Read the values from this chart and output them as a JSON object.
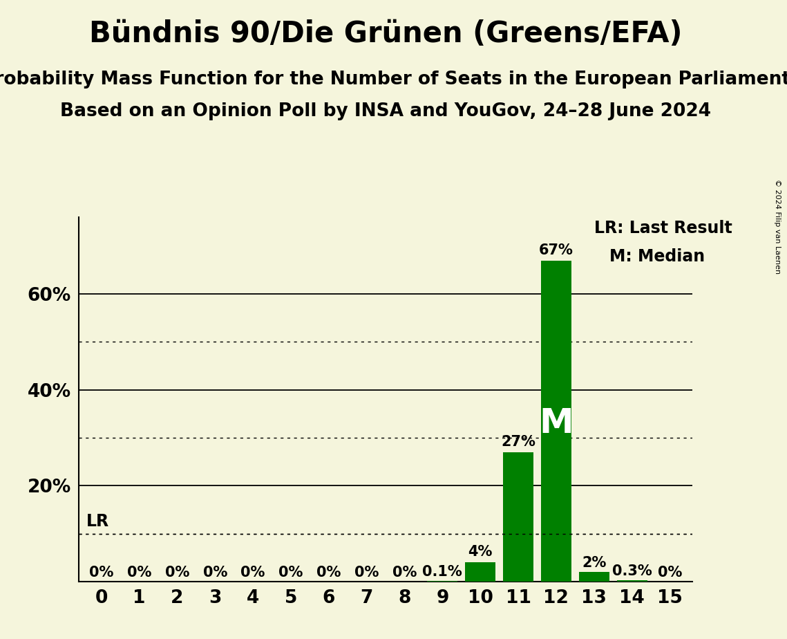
{
  "title": "Bündnis 90/Die Grünen (Greens/EFA)",
  "subtitle1": "Probability Mass Function for the Number of Seats in the European Parliament",
  "subtitle2": "Based on an Opinion Poll by INSA and YouGov, 24–28 June 2024",
  "copyright": "© 2024 Filip van Laenen",
  "categories": [
    0,
    1,
    2,
    3,
    4,
    5,
    6,
    7,
    8,
    9,
    10,
    11,
    12,
    13,
    14,
    15
  ],
  "values": [
    0.0,
    0.0,
    0.0,
    0.0,
    0.0,
    0.0,
    0.0,
    0.0,
    0.0,
    0.001,
    0.04,
    0.27,
    0.67,
    0.02,
    0.003,
    0.0
  ],
  "bar_labels": [
    "0%",
    "0%",
    "0%",
    "0%",
    "0%",
    "0%",
    "0%",
    "0%",
    "0%",
    "0.1%",
    "4%",
    "27%",
    "67%",
    "2%",
    "0.3%",
    "0%"
  ],
  "bar_color": "#008000",
  "background_color": "#F5F5DC",
  "lr_value": 0.1,
  "median_seat": 12,
  "ylim": [
    0,
    0.76
  ],
  "yticks": [
    0.2,
    0.4,
    0.6
  ],
  "ytick_labels": [
    "20%",
    "40%",
    "60%"
  ],
  "solid_yticks": [
    0.0,
    0.2,
    0.4,
    0.6
  ],
  "dotted_yticks": [
    0.1,
    0.3,
    0.5
  ],
  "legend_lr": "LR: Last Result",
  "legend_m": "M: Median",
  "title_fontsize": 30,
  "subtitle_fontsize": 19,
  "label_fontsize": 15,
  "tick_fontsize": 19,
  "legend_fontsize": 17
}
